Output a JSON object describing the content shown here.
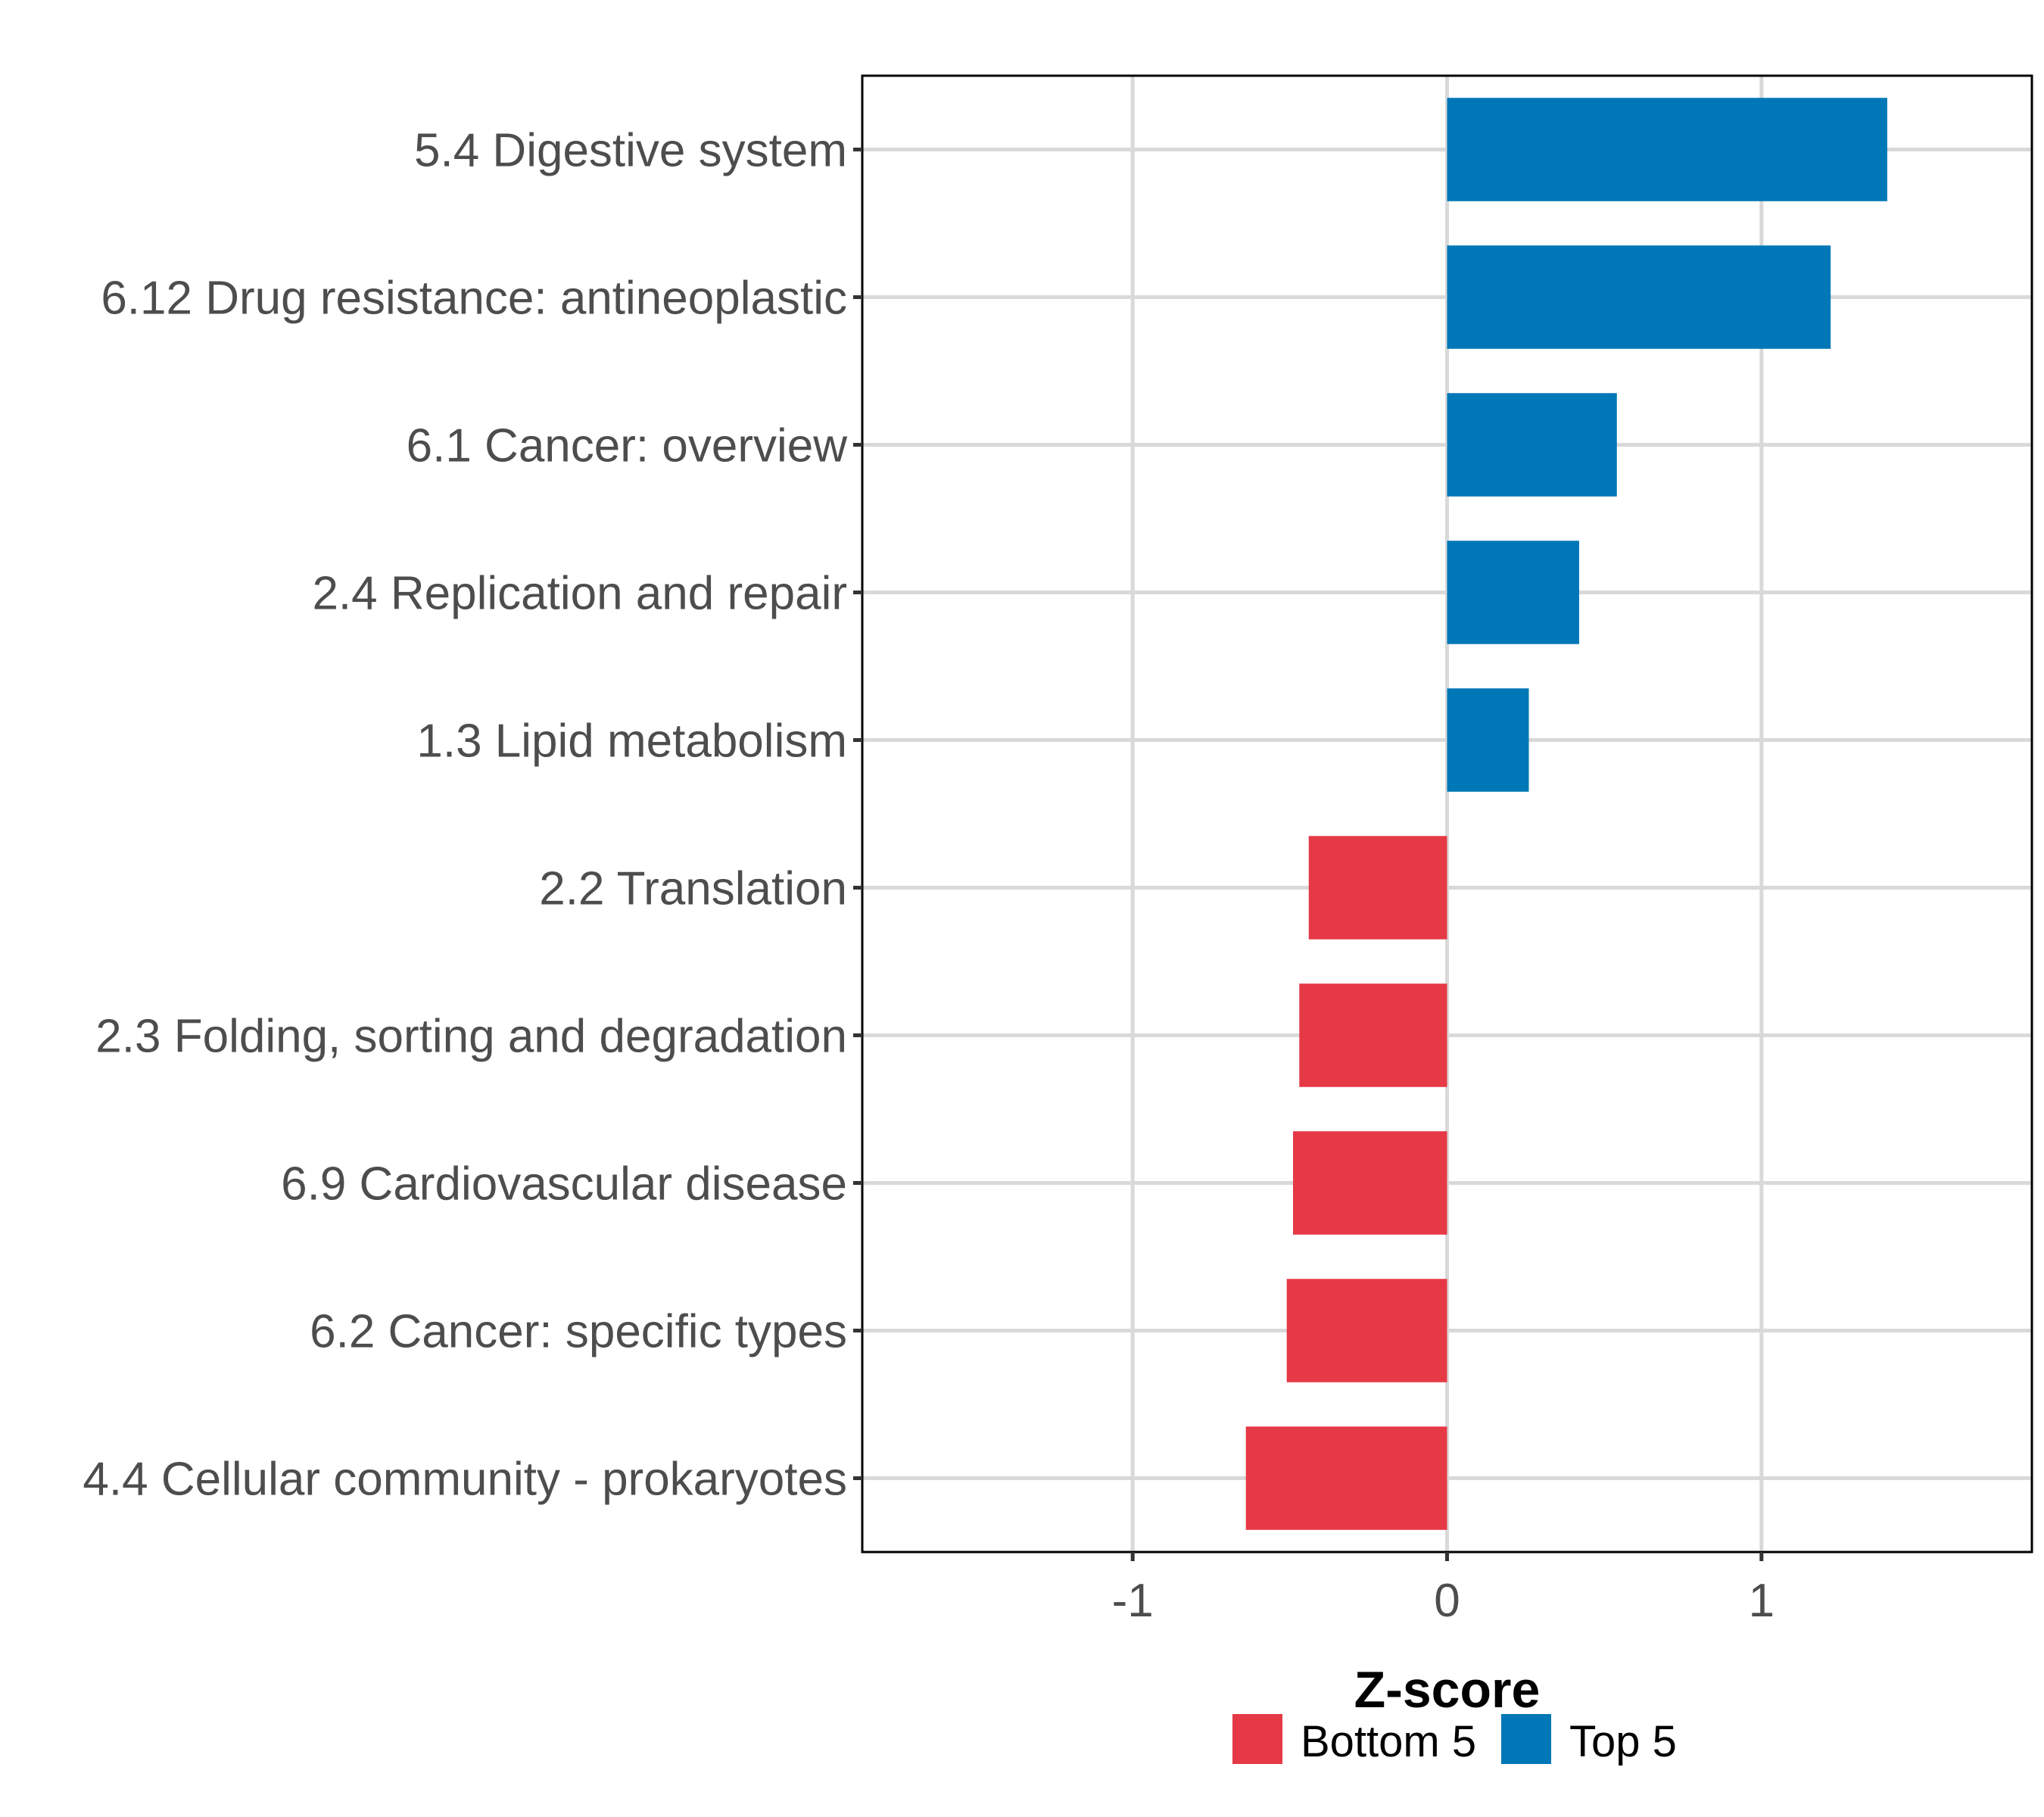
{
  "chart_data": {
    "type": "bar",
    "orientation": "horizontal",
    "title": "",
    "xlabel": "Z-score",
    "ylabel": "",
    "xlim": [
      -1.86,
      1.86
    ],
    "xticks": [
      -1,
      0,
      1
    ],
    "xtick_labels": [
      "-1",
      "0",
      "1"
    ],
    "grid": true,
    "legend_position": "bottom",
    "legend": [
      {
        "label": "Bottom 5",
        "color": "#E63946"
      },
      {
        "label": "Top 5",
        "color": "#0077B6"
      }
    ],
    "categories": [
      "5.4 Digestive system",
      "6.12 Drug resistance: antineoplastic",
      "6.1 Cancer: overview",
      "2.4 Replication and repair",
      "1.3 Lipid metabolism",
      "2.2 Translation",
      "2.3 Folding, sorting and degradation",
      "6.9 Cardiovascular disease",
      "6.2 Cancer: specific types",
      "4.4 Cellular community - prokaryotes"
    ],
    "values": [
      1.4,
      1.22,
      0.54,
      0.42,
      0.26,
      -0.44,
      -0.47,
      -0.49,
      -0.51,
      -0.64
    ],
    "groups": [
      "Top 5",
      "Top 5",
      "Top 5",
      "Top 5",
      "Top 5",
      "Bottom 5",
      "Bottom 5",
      "Bottom 5",
      "Bottom 5",
      "Bottom 5"
    ]
  }
}
